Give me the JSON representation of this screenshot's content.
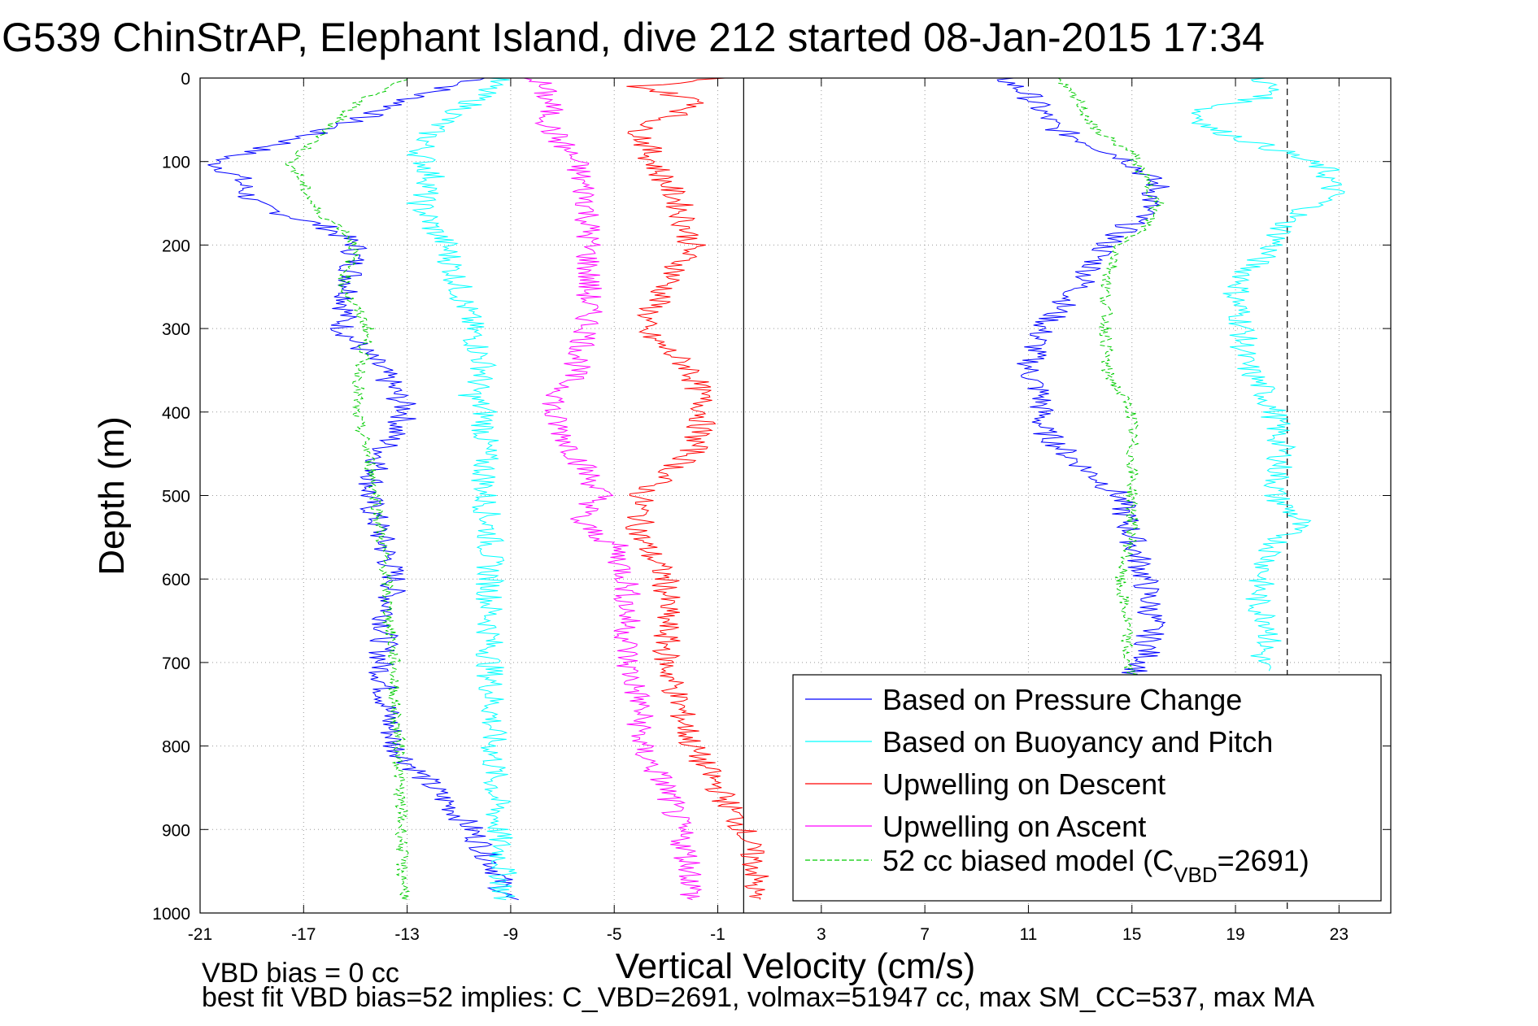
{
  "chart_data": {
    "type": "line",
    "title": "G539 ChinStrAP, Elephant Island, dive 212 started 08-Jan-2015 17:34",
    "xlabel": "Vertical Velocity (cm/s)",
    "ylabel": "Depth (m)",
    "xlim": [
      -21,
      25
    ],
    "ylim": [
      1000,
      0
    ],
    "y_reversed": true,
    "grid": true,
    "x_ticks": [
      -21,
      -17,
      -13,
      -9,
      -5,
      -1,
      3,
      7,
      11,
      15,
      19,
      23
    ],
    "x_tick_labels": [
      "-21",
      "-17",
      "-13",
      "-9",
      "-5",
      "-1",
      "3",
      "7",
      "11",
      "15",
      "19",
      "23"
    ],
    "y_ticks": [
      0,
      100,
      200,
      300,
      400,
      500,
      600,
      700,
      800,
      900,
      1000
    ],
    "y_tick_labels": [
      "0",
      "100",
      "200",
      "300",
      "400",
      "500",
      "600",
      "700",
      "800",
      "900",
      "1000"
    ],
    "reference_lines": [
      {
        "x": 0,
        "style": "solid",
        "color": "#000000"
      },
      {
        "x": 21,
        "style": "dashed",
        "color": "#000000"
      }
    ],
    "legend_position": "bottom-right",
    "legend": [
      {
        "label": "Based on Pressure Change",
        "color": "#0000ff",
        "style": "solid"
      },
      {
        "label": "Based on Buoyancy and Pitch",
        "color": "#00ffff",
        "style": "solid"
      },
      {
        "label": "Upwelling on Descent",
        "color": "#ff0000",
        "style": "solid"
      },
      {
        "label": "Upwelling on Ascent",
        "color": "#ff00ff",
        "style": "solid"
      },
      {
        "label_main": "52 cc biased model (C",
        "label_sub": "VBD",
        "label_tail": "=2691)",
        "color": "#00cc00",
        "style": "dashed"
      }
    ],
    "series": [
      {
        "name": "Based on Pressure Change (descent)",
        "color": "#0000ff",
        "style": "solid",
        "y": [
          0,
          20,
          40,
          60,
          80,
          100,
          120,
          150,
          180,
          200,
          250,
          300,
          350,
          400,
          450,
          500,
          550,
          600,
          650,
          700,
          750,
          800,
          850,
          900,
          950,
          985
        ],
        "x": [
          -10,
          -12.5,
          -14,
          -16,
          -18,
          -20.5,
          -19.5,
          -19,
          -16,
          -15,
          -15.2,
          -15.5,
          -14,
          -13,
          -14,
          -14.5,
          -14,
          -13.5,
          -13.8,
          -14,
          -13.8,
          -13.5,
          -12,
          -10.5,
          -9.5,
          -9.2
        ]
      },
      {
        "name": "Based on Pressure Change (ascent)",
        "color": "#0000ff",
        "style": "solid",
        "y": [
          0,
          20,
          40,
          60,
          80,
          100,
          130,
          160,
          200,
          250,
          300,
          350,
          380,
          420,
          450,
          500,
          550,
          600,
          650,
          700,
          715
        ],
        "x": [
          10,
          11,
          11.5,
          12,
          13.5,
          15,
          16,
          15.5,
          14,
          13,
          11.5,
          11,
          11.5,
          11.5,
          12.5,
          14.5,
          15,
          15.5,
          15.8,
          15.5,
          15
        ]
      },
      {
        "name": "Based on Buoyancy and Pitch (descent)",
        "color": "#00ffff",
        "style": "solid",
        "y": [
          0,
          30,
          60,
          90,
          120,
          150,
          180,
          200,
          250,
          300,
          350,
          380,
          400,
          450,
          500,
          550,
          600,
          650,
          700,
          750,
          800,
          850,
          900,
          950,
          985
        ],
        "x": [
          -9.5,
          -10.5,
          -12,
          -12.5,
          -12,
          -12.5,
          -12,
          -11.5,
          -11,
          -10.5,
          -10,
          -10.5,
          -10,
          -10,
          -10,
          -9.8,
          -9.8,
          -9.8,
          -9.8,
          -9.7,
          -9.7,
          -9.6,
          -9.5,
          -9.3,
          -9.3
        ]
      },
      {
        "name": "Based on Buoyancy and Pitch (ascent)",
        "color": "#00ffff",
        "style": "solid",
        "y": [
          0,
          20,
          40,
          60,
          90,
          110,
          140,
          170,
          200,
          230,
          260,
          300,
          340,
          370,
          400,
          450,
          500,
          530,
          560,
          600,
          630,
          660,
          690,
          710
        ],
        "x": [
          20,
          20.5,
          17.5,
          18,
          21,
          22.5,
          22.8,
          21,
          20.5,
          19.5,
          19,
          19.3,
          19.3,
          20,
          20.5,
          20.8,
          20.5,
          21.5,
          20.5,
          20,
          19.8,
          20.5,
          20,
          20
        ]
      },
      {
        "name": "Upwelling on Descent",
        "color": "#ff0000",
        "style": "solid",
        "y": [
          0,
          10,
          30,
          60,
          100,
          150,
          200,
          250,
          300,
          350,
          400,
          450,
          500,
          550,
          600,
          650,
          700,
          750,
          800,
          850,
          900,
          950,
          985
        ],
        "x": [
          -1,
          -4,
          -1.5,
          -4,
          -3.5,
          -2.5,
          -2,
          -3,
          -4,
          -2,
          -1.5,
          -2,
          -4,
          -4,
          -3,
          -3,
          -3,
          -2.5,
          -2,
          -1,
          0,
          0.5,
          0.3
        ]
      },
      {
        "name": "Upwelling on Ascent",
        "color": "#ff00ff",
        "style": "solid",
        "y": [
          0,
          30,
          60,
          100,
          150,
          200,
          250,
          300,
          350,
          400,
          450,
          500,
          530,
          560,
          600,
          650,
          700,
          750,
          800,
          850,
          900,
          950,
          985
        ],
        "x": [
          -8,
          -7.5,
          -7.5,
          -6.5,
          -6,
          -6,
          -6,
          -6,
          -6.5,
          -7.5,
          -6.5,
          -5.5,
          -6.5,
          -5,
          -4.5,
          -4.5,
          -4.5,
          -4,
          -4,
          -3,
          -2.5,
          -2,
          -2
        ]
      },
      {
        "name": "52 cc biased model (descent)",
        "color": "#00cc00",
        "style": "dashed",
        "y": [
          0,
          30,
          60,
          100,
          130,
          160,
          180,
          200,
          250,
          300,
          350,
          400,
          450,
          500,
          550,
          600,
          650,
          700,
          750,
          800,
          850,
          900,
          950,
          985
        ],
        "x": [
          -13,
          -15,
          -16,
          -17.5,
          -17,
          -16.5,
          -15.5,
          -15,
          -15.5,
          -14.5,
          -14.8,
          -15,
          -14.5,
          -14.2,
          -14,
          -13.8,
          -13.7,
          -13.5,
          -13.5,
          -13.3,
          -13.3,
          -13.2,
          -13.2,
          -13
        ]
      },
      {
        "name": "52 cc biased model (ascent)",
        "color": "#00cc00",
        "style": "dashed",
        "y": [
          0,
          30,
          60,
          90,
          120,
          150,
          180,
          200,
          250,
          300,
          350,
          400,
          450,
          500,
          550,
          600,
          650,
          700,
          715
        ],
        "x": [
          12,
          13,
          13.5,
          15,
          15.5,
          16,
          15.5,
          14.5,
          14,
          14,
          14,
          15,
          15,
          15,
          15,
          14.5,
          14.8,
          14.8,
          15
        ]
      }
    ]
  },
  "footer": {
    "line1": "VBD bias = 0 cc",
    "line2": "best fit VBD bias=52 implies: C_VBD=2691, volmax=51947 cc, max SM_CC=537, max MA"
  }
}
